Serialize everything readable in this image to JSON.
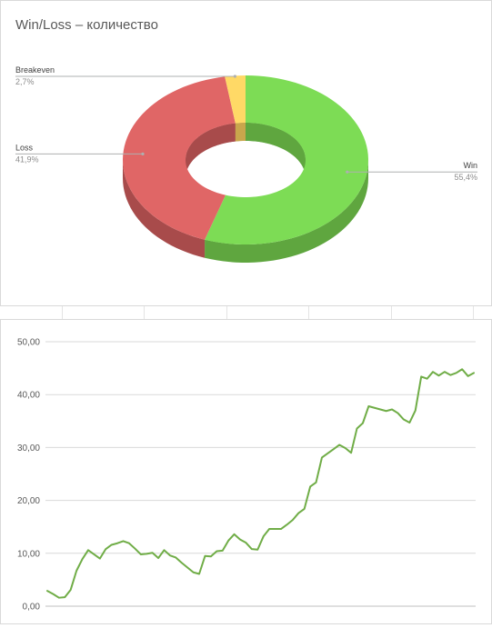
{
  "chart_data": [
    {
      "type": "pie",
      "title": "Win/Loss – количество",
      "donut": true,
      "three_d": true,
      "slices": [
        {
          "label": "Win",
          "percent_label": "55,4%",
          "value": 55.4,
          "color": "#7ddc55",
          "side_color": "#5fa63f",
          "line_color": "#aeb0b0"
        },
        {
          "label": "Loss",
          "percent_label": "41,9%",
          "value": 41.9,
          "color": "#e06666",
          "side_color": "#a84b4b",
          "line_color": "#aeb0b0"
        },
        {
          "label": "Breakeven",
          "percent_label": "2,7%",
          "value": 2.7,
          "color": "#ffd966",
          "side_color": "#c9a64c",
          "line_color": "#aeb0b0"
        }
      ]
    },
    {
      "type": "line",
      "ylim": [
        0,
        50
      ],
      "yticks": [
        "0,00",
        "10,00",
        "20,00",
        "30,00",
        "40,00",
        "50,00"
      ],
      "ytick_values": [
        0,
        10,
        20,
        30,
        40,
        50
      ],
      "grid": true,
      "line_color": "#70ad47",
      "series": [
        {
          "values": [
            2.9,
            2.3,
            1.6,
            1.7,
            3.1,
            6.7,
            8.9,
            10.6,
            9.8,
            9.0,
            10.8,
            11.6,
            11.9,
            12.3,
            11.9,
            10.9,
            9.8,
            9.9,
            10.1,
            9.1,
            10.6,
            9.6,
            9.2,
            8.2,
            7.3,
            6.4,
            6.1,
            9.5,
            9.4,
            10.4,
            10.5,
            12.4,
            13.6,
            12.6,
            12.0,
            10.8,
            10.7,
            13.2,
            14.6,
            14.6,
            14.6,
            15.4,
            16.3,
            17.6,
            18.4,
            22.6,
            23.4,
            28.1,
            28.9,
            29.7,
            30.5,
            29.9,
            29.0,
            33.6,
            34.6,
            37.8,
            37.5,
            37.2,
            36.9,
            37.2,
            36.5,
            35.3,
            34.7,
            37.0,
            43.4,
            43.0,
            44.3,
            43.6,
            44.3,
            43.7,
            44.1,
            44.8,
            43.5,
            44.1
          ]
        }
      ]
    }
  ]
}
